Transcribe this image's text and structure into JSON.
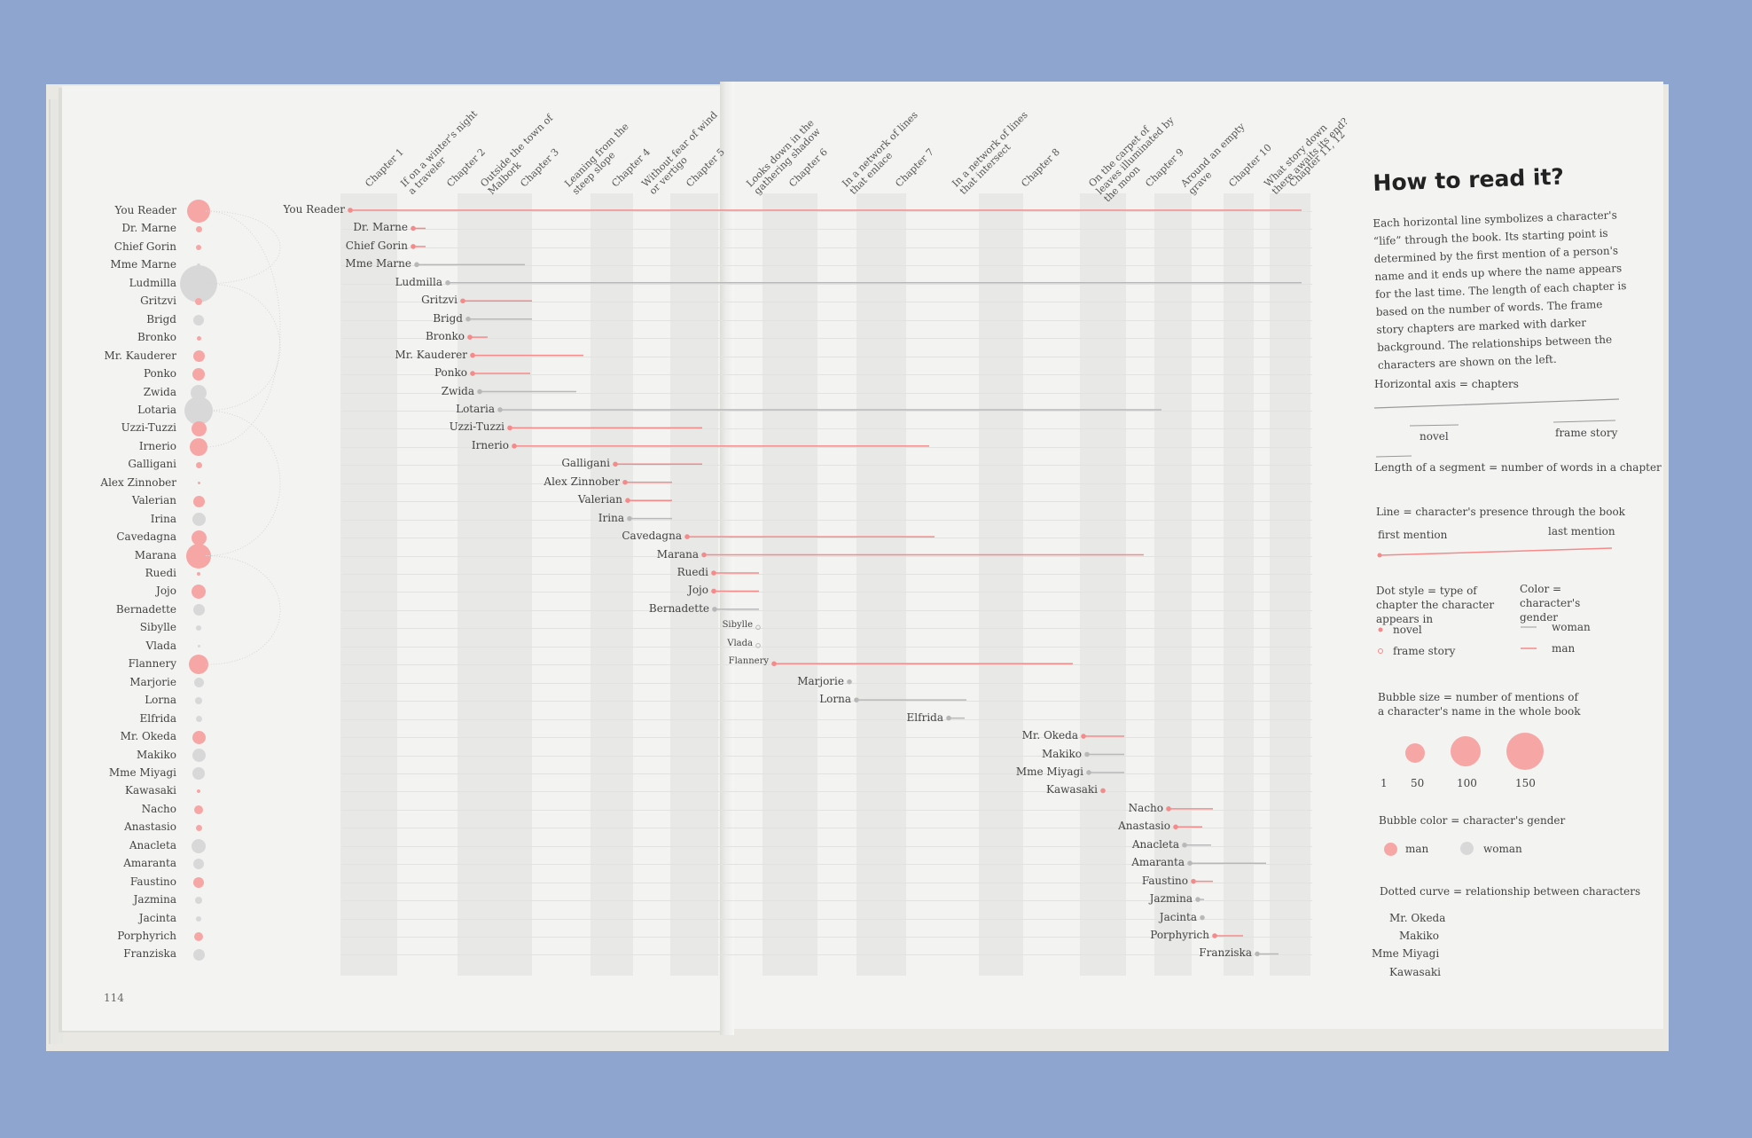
{
  "colors": {
    "man": "#f58a8a",
    "woman": "#b8b8b8",
    "background": "#8ea6cf"
  },
  "page_number": "114",
  "chapters": [
    "Chapter 1",
    "If on a winter's night a traveler",
    "Chapter 2",
    "Outside the town of Malbork",
    "Chapter 3",
    "Leaning from the steep slope",
    "Chapter 4",
    "Without fear of wind or vertigo",
    "Chapter 5",
    "Looks down in the gathering shadow",
    "Chapter 6",
    "In a network of lines that enlace",
    "Chapter 7",
    "In a network of lines that intersect",
    "Chapter 8",
    "On the carpet of leaves illuminated by the moon",
    "Chapter 9",
    "Around an empty grave",
    "Chapter 10",
    "What story down there awaits its end?",
    "Chapter 11, 12"
  ],
  "characters": [
    {
      "name": "You Reader",
      "gender": "man",
      "bubble": 26,
      "start": 395,
      "end": 1468
    },
    {
      "name": "Dr. Marne",
      "gender": "man",
      "bubble": 7,
      "start": 466,
      "end": 480
    },
    {
      "name": "Chief Gorin",
      "gender": "man",
      "bubble": 6,
      "start": 466,
      "end": 480
    },
    {
      "name": "Mme Marne",
      "gender": "woman",
      "bubble": 4,
      "start": 470,
      "end": 592
    },
    {
      "name": "Ludmilla",
      "gender": "woman",
      "bubble": 42,
      "start": 505,
      "end": 1468
    },
    {
      "name": "Gritzvi",
      "gender": "man",
      "bubble": 8,
      "start": 522,
      "end": 600
    },
    {
      "name": "Brigd",
      "gender": "woman",
      "bubble": 12,
      "start": 528,
      "end": 600
    },
    {
      "name": "Bronko",
      "gender": "man",
      "bubble": 5,
      "start": 530,
      "end": 550
    },
    {
      "name": "Mr. Kauderer",
      "gender": "man",
      "bubble": 13,
      "start": 533,
      "end": 658
    },
    {
      "name": "Ponko",
      "gender": "man",
      "bubble": 14,
      "start": 533,
      "end": 598
    },
    {
      "name": "Zwida",
      "gender": "woman",
      "bubble": 18,
      "start": 541,
      "end": 650
    },
    {
      "name": "Lotaria",
      "gender": "woman",
      "bubble": 32,
      "start": 564,
      "end": 1310
    },
    {
      "name": "Uzzi-Tuzzi",
      "gender": "man",
      "bubble": 17,
      "start": 575,
      "end": 792
    },
    {
      "name": "Irnerio",
      "gender": "man",
      "bubble": 20,
      "start": 580,
      "end": 1048
    },
    {
      "name": "Galligani",
      "gender": "man",
      "bubble": 7,
      "start": 694,
      "end": 792
    },
    {
      "name": "Alex Zinnober",
      "gender": "man",
      "bubble": 3,
      "start": 705,
      "end": 758
    },
    {
      "name": "Valerian",
      "gender": "man",
      "bubble": 13,
      "start": 708,
      "end": 758
    },
    {
      "name": "Irina",
      "gender": "woman",
      "bubble": 15,
      "start": 710,
      "end": 758
    },
    {
      "name": "Cavedagna",
      "gender": "man",
      "bubble": 17,
      "start": 775,
      "end": 1054
    },
    {
      "name": "Marana",
      "gender": "man",
      "bubble": 28,
      "start": 794,
      "end": 1290
    },
    {
      "name": "Ruedi",
      "gender": "man",
      "bubble": 4,
      "start": 805,
      "end": 856
    },
    {
      "name": "Jojo",
      "gender": "man",
      "bubble": 16,
      "start": 805,
      "end": 856
    },
    {
      "name": "Bernadette",
      "gender": "woman",
      "bubble": 13,
      "start": 806,
      "end": 856
    },
    {
      "name": "Sibylle",
      "gender": "woman",
      "bubble": 6,
      "start": 855,
      "end": 855
    },
    {
      "name": "Vlada",
      "gender": "woman",
      "bubble": 3,
      "start": 855,
      "end": 855
    },
    {
      "name": "Flannery",
      "gender": "man",
      "bubble": 22,
      "start": 873,
      "end": 1210
    },
    {
      "name": "Marjorie",
      "gender": "woman",
      "bubble": 11,
      "start": 958,
      "end": 958
    },
    {
      "name": "Lorna",
      "gender": "woman",
      "bubble": 8,
      "start": 966,
      "end": 1090
    },
    {
      "name": "Elfrida",
      "gender": "woman",
      "bubble": 7,
      "start": 1070,
      "end": 1088
    },
    {
      "name": "Mr. Okeda",
      "gender": "man",
      "bubble": 15,
      "start": 1222,
      "end": 1268
    },
    {
      "name": "Makiko",
      "gender": "woman",
      "bubble": 15,
      "start": 1226,
      "end": 1268
    },
    {
      "name": "Mme Miyagi",
      "gender": "woman",
      "bubble": 14,
      "start": 1228,
      "end": 1268
    },
    {
      "name": "Kawasaki",
      "gender": "man",
      "bubble": 4,
      "start": 1244,
      "end": 1244
    },
    {
      "name": "Nacho",
      "gender": "man",
      "bubble": 10,
      "start": 1318,
      "end": 1368
    },
    {
      "name": "Anastasio",
      "gender": "man",
      "bubble": 7,
      "start": 1326,
      "end": 1356
    },
    {
      "name": "Anacleta",
      "gender": "woman",
      "bubble": 16,
      "start": 1336,
      "end": 1366
    },
    {
      "name": "Amaranta",
      "gender": "woman",
      "bubble": 12,
      "start": 1342,
      "end": 1428
    },
    {
      "name": "Faustino",
      "gender": "man",
      "bubble": 12,
      "start": 1346,
      "end": 1368
    },
    {
      "name": "Jazmina",
      "gender": "woman",
      "bubble": 8,
      "start": 1351,
      "end": 1358
    },
    {
      "name": "Jacinta",
      "gender": "woman",
      "bubble": 6,
      "start": 1356,
      "end": 1358
    },
    {
      "name": "Porphyrich",
      "gender": "man",
      "bubble": 10,
      "start": 1370,
      "end": 1402
    },
    {
      "name": "Franziska",
      "gender": "woman",
      "bubble": 13,
      "start": 1418,
      "end": 1442
    }
  ],
  "howto": {
    "title": "How to read it?",
    "text": "Each horizontal line symbolizes a character's “life” through the book. Its starting point is determined by the first mention of a person's name and it ends up where the name appears for the last time. The length of each chapter is based on the number of words. The frame story chapters are marked with darker background. The relationships between the characters are shown on the left.",
    "axis": "Horizontal axis = chapters",
    "novel": "novel",
    "frame_story": "frame story",
    "segment": "Length of a segment = number of words in a chapter",
    "line": "Line = character's presence through the book",
    "first_mention": "first mention",
    "last_mention": "last mention",
    "dot_style": "Dot style = type of chapter the character appears in",
    "color": "Color = character's gender",
    "dot_novel": "novel",
    "dot_frame": "frame story",
    "woman": "woman",
    "man": "man",
    "bubble_size": "Bubble size = number of mentions of a character's name in the whole book",
    "bubble_1": "1",
    "bubble_50": "50",
    "bubble_100": "100",
    "bubble_150": "150",
    "bubble_color": "Bubble color = character's gender",
    "bc_man": "man",
    "bc_woman": "woman",
    "dotted": "Dotted curve = relationship between characters",
    "rel_names": [
      "Mr. Okeda",
      "Makiko",
      "Mme Miyagi",
      "Kawasaki"
    ]
  }
}
